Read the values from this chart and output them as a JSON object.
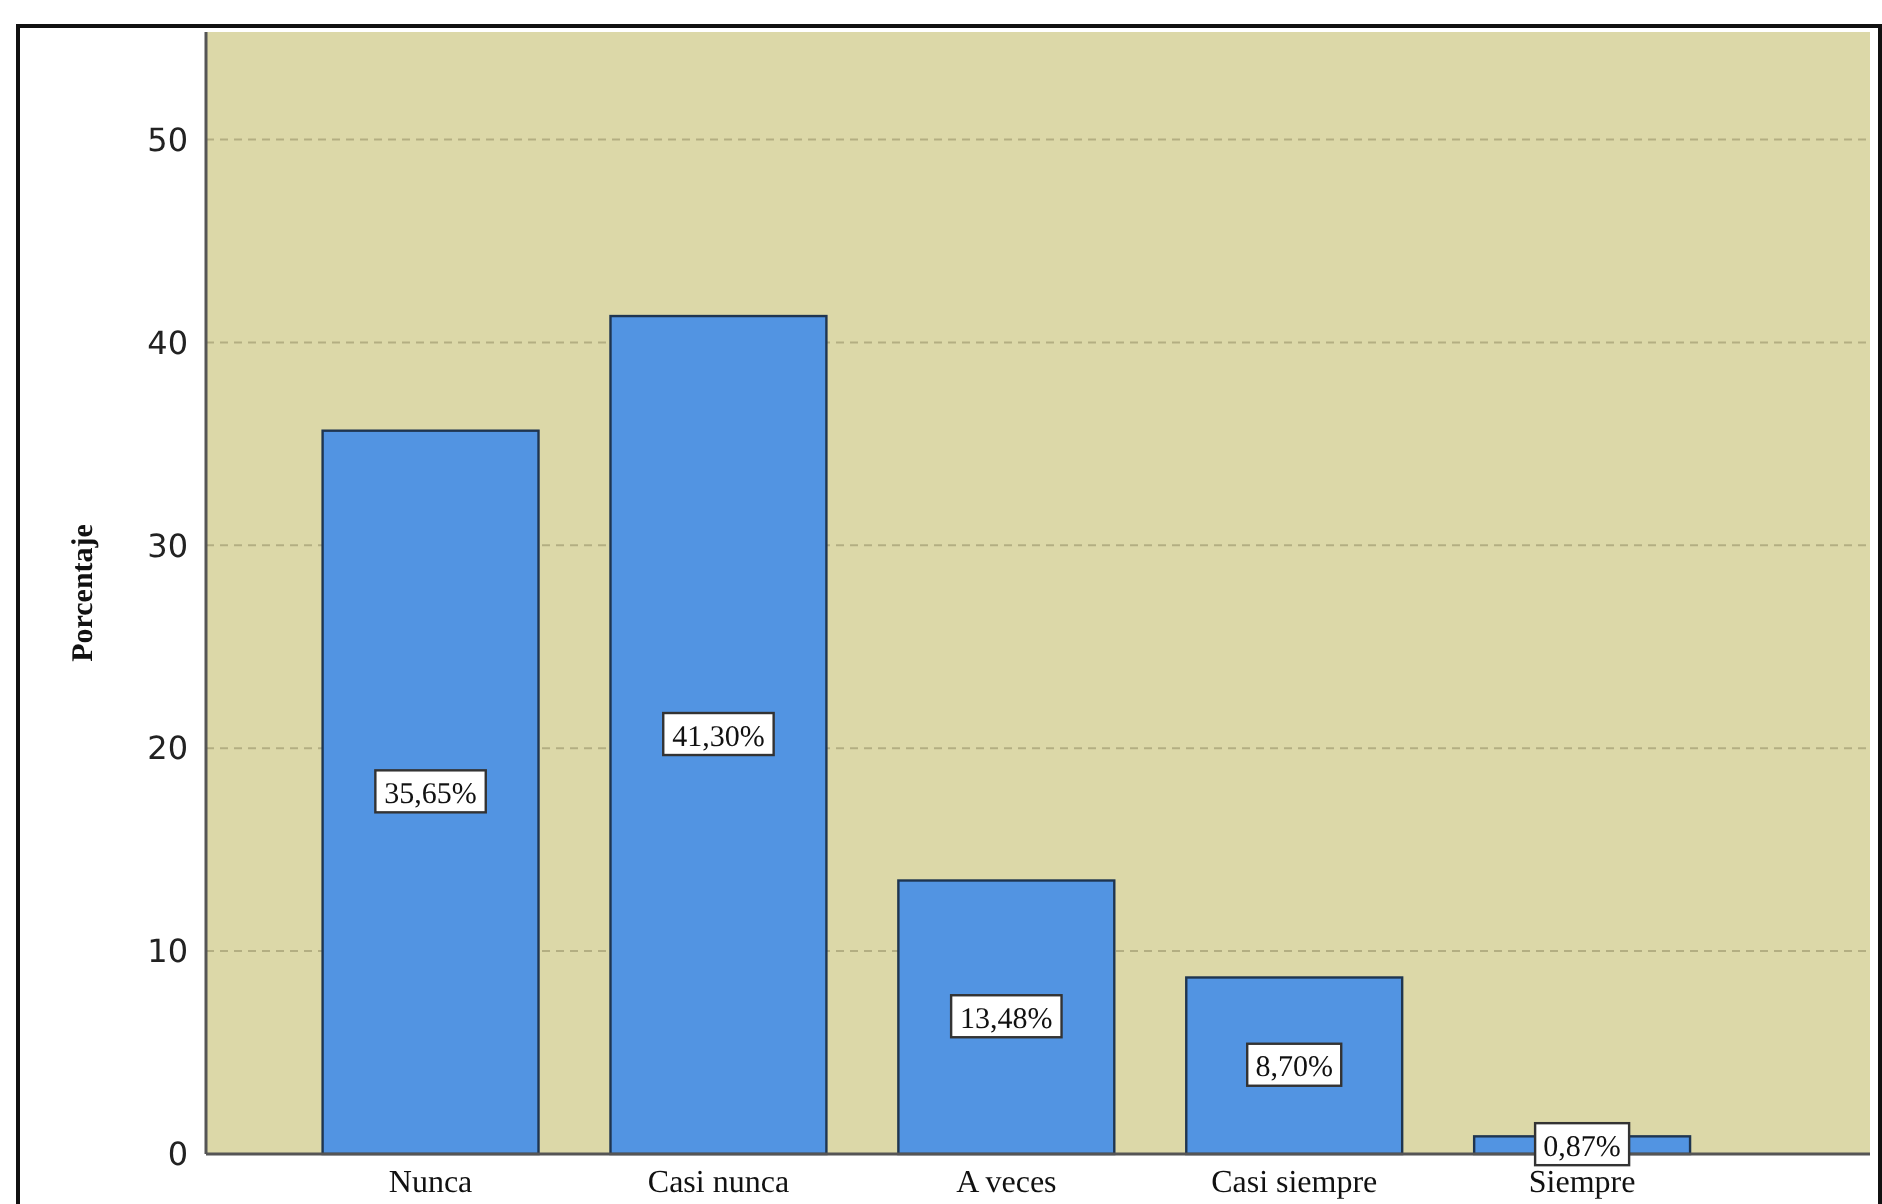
{
  "chart_data": {
    "type": "bar",
    "ylabel": "Porcentaje",
    "categories": [
      "Nunca",
      "Casi nunca",
      "A veces",
      "Casi siempre",
      "Siempre"
    ],
    "values": [
      35.65,
      41.3,
      13.48,
      8.7,
      0.87
    ],
    "color": "#5294e2",
    "value_labels": [
      "35,65%",
      "41,30%",
      "13,48%",
      "8,70%",
      "0,87%"
    ],
    "ylim": [
      0,
      55.3
    ],
    "yticks": [
      0,
      10,
      20,
      30,
      40,
      50
    ],
    "grid": "y"
  }
}
